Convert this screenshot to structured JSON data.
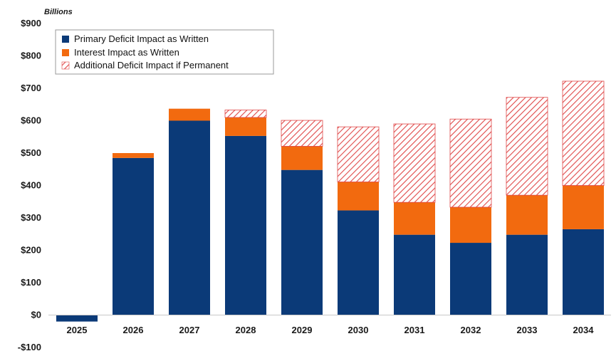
{
  "chart_data": {
    "type": "bar",
    "stacked": true,
    "unit_label": "Billions",
    "ylim": [
      -100,
      900
    ],
    "yticks": [
      -100,
      0,
      100,
      200,
      300,
      400,
      500,
      600,
      700,
      800,
      900
    ],
    "ytick_labels": [
      "-$100",
      "$0",
      "$100",
      "$200",
      "$300",
      "$400",
      "$500",
      "$600",
      "$700",
      "$800",
      "$900"
    ],
    "categories": [
      "2025",
      "2026",
      "2027",
      "2028",
      "2029",
      "2030",
      "2031",
      "2032",
      "2033",
      "2034"
    ],
    "legend_position": "top-left",
    "series": [
      {
        "name": "Primary Deficit Impact as Written",
        "color": "#0b3a78",
        "pattern": "solid",
        "values": [
          -20,
          485,
          600,
          553,
          448,
          323,
          248,
          223,
          248,
          265
        ]
      },
      {
        "name": "Interest Impact as Written",
        "color": "#f26a0f",
        "pattern": "solid",
        "values": [
          0,
          15,
          37,
          57,
          73,
          88,
          100,
          110,
          122,
          135
        ]
      },
      {
        "name": "Additional Deficit Impact if Permanent",
        "color": "#e04848",
        "pattern": "hatched",
        "values": [
          0,
          0,
          0,
          23,
          80,
          170,
          242,
          272,
          302,
          322
        ]
      }
    ]
  }
}
